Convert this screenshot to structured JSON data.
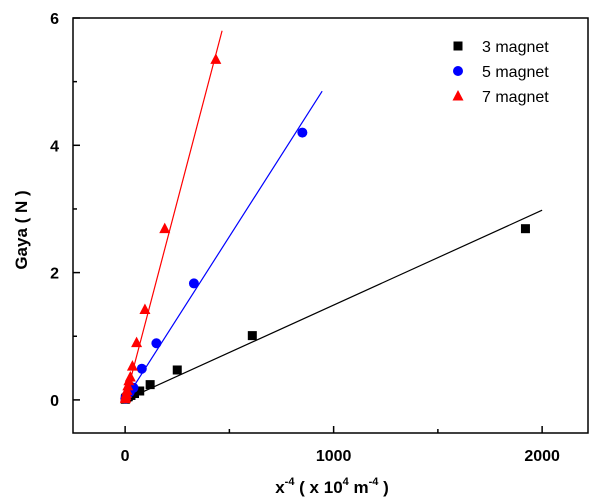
{
  "chart_data": {
    "type": "scatter",
    "xlabel": "x",
    "xlabel_sup1": "-4",
    "xlabel_mid": " ( x 10",
    "xlabel_sup2": "4",
    "xlabel_unit": " m",
    "xlabel_sup3": "-4",
    "xlabel_end": " )",
    "ylabel": "Gaya ( N )",
    "xlim": [
      -250,
      2220
    ],
    "ylim": [
      -0.52,
      6.0
    ],
    "x_ticks": [
      0,
      1000,
      2000
    ],
    "x_tick_labels": [
      "0",
      "1000",
      "2000"
    ],
    "y_ticks": [
      0,
      2,
      4,
      6
    ],
    "y_tick_labels": [
      "0",
      "2",
      "4",
      "6"
    ],
    "grid": false,
    "legend_position": "top-right",
    "series": [
      {
        "name": "3 magnet",
        "color": "#000000",
        "marker": "square",
        "x": [
          1,
          2,
          4,
          8,
          15,
          28,
          45,
          70,
          120,
          250,
          610,
          1920
        ],
        "y": [
          0.01,
          0.02,
          0.03,
          0.04,
          0.05,
          0.07,
          0.1,
          0.14,
          0.24,
          0.47,
          1.01,
          2.69
        ],
        "fit": {
          "x": [
            0,
            2000
          ],
          "y": [
            0.0,
            2.98
          ]
        }
      },
      {
        "name": "5 magnet",
        "color": "#0000ff",
        "marker": "circle",
        "x": [
          1,
          3,
          6,
          12,
          22,
          40,
          80,
          150,
          330,
          850
        ],
        "y": [
          0.02,
          0.04,
          0.06,
          0.09,
          0.12,
          0.19,
          0.49,
          0.89,
          1.83,
          4.2
        ],
        "fit": {
          "x": [
            0,
            945
          ],
          "y": [
            0.0,
            4.85
          ]
        }
      },
      {
        "name": "7 magnet",
        "color": "#ff0000",
        "marker": "triangle",
        "x": [
          1,
          2,
          4,
          6,
          9,
          13,
          18,
          25,
          35,
          55,
          95,
          190,
          435
        ],
        "y": [
          0.02,
          0.04,
          0.07,
          0.1,
          0.15,
          0.22,
          0.3,
          0.36,
          0.53,
          0.9,
          1.42,
          2.69,
          5.35
        ],
        "fit": {
          "x": [
            0,
            465
          ],
          "y": [
            0.0,
            5.8
          ]
        }
      }
    ]
  }
}
